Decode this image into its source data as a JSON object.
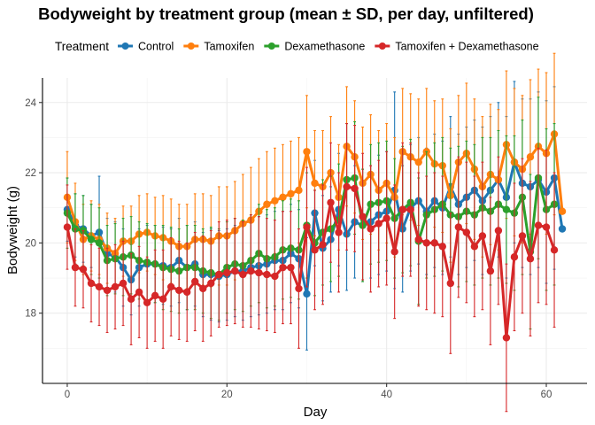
{
  "chart_data": {
    "type": "line",
    "title": "Bodyweight by treatment group (mean ± SD, per day, unfiltered)",
    "xlabel": "Day",
    "ylabel": "Bodyweight (g)",
    "xlim": [
      -3.1,
      65.1
    ],
    "ylim": [
      16.0,
      24.7
    ],
    "xticks": [
      0,
      20,
      40,
      60
    ],
    "yticks": [
      18,
      20,
      22,
      24
    ],
    "grid": true,
    "legend": {
      "title": "Treatment",
      "position": "top"
    },
    "series": [
      {
        "name": "Control",
        "color": "#1f77b4",
        "x": [
          0,
          1,
          2,
          3,
          4,
          5,
          6,
          7,
          8,
          9,
          10,
          11,
          12,
          13,
          14,
          15,
          16,
          17,
          18,
          19,
          20,
          21,
          22,
          23,
          24,
          25,
          26,
          27,
          28,
          29,
          30,
          31,
          32,
          33,
          34,
          35,
          36,
          37,
          38,
          39,
          40,
          41,
          42,
          43,
          44,
          45,
          46,
          47,
          48,
          49,
          50,
          51,
          52,
          53,
          54,
          55,
          56,
          57,
          58,
          59,
          60,
          61,
          62
        ],
        "y": [
          20.95,
          20.5,
          20.4,
          20.2,
          20.3,
          19.7,
          19.6,
          19.3,
          18.95,
          19.3,
          19.4,
          19.4,
          19.35,
          19.3,
          19.5,
          19.3,
          19.4,
          19.1,
          19.1,
          19.05,
          19.1,
          19.2,
          19.2,
          19.3,
          19.35,
          19.4,
          19.5,
          19.5,
          19.7,
          19.55,
          18.55,
          20.85,
          19.85,
          20.1,
          20.95,
          20.25,
          20.6,
          20.5,
          20.6,
          20.8,
          20.9,
          21.5,
          20.4,
          21.0,
          21.2,
          20.9,
          21.2,
          21.0,
          21.6,
          21.1,
          21.3,
          21.5,
          21.2,
          21.5,
          21.8,
          21.3,
          22.3,
          21.7,
          21.6,
          21.8,
          21.45,
          21.85,
          20.4
        ],
        "sd": [
          0.9,
          0.9,
          0.95,
          0.9,
          1.6,
          1.0,
          1.0,
          1.1,
          1.0,
          1.1,
          1.1,
          1.1,
          1.1,
          1.1,
          1.2,
          1.2,
          1.2,
          1.2,
          1.3,
          1.3,
          1.3,
          1.3,
          1.4,
          1.4,
          1.4,
          1.4,
          1.4,
          1.4,
          1.4,
          1.4,
          1.6,
          1.5,
          1.5,
          1.5,
          1.6,
          1.6,
          1.6,
          1.6,
          1.6,
          1.7,
          1.7,
          2.8,
          1.8,
          1.8,
          1.8,
          1.8,
          1.9,
          1.9,
          2.0,
          2.0,
          2.0,
          2.0,
          2.1,
          2.1,
          2.2,
          2.3,
          2.3,
          2.4,
          2.5,
          2.5,
          2.6,
          2.6,
          0.0
        ]
      },
      {
        "name": "Tamoxifen",
        "color": "#ff7f0e",
        "x": [
          0,
          1,
          2,
          3,
          4,
          5,
          6,
          7,
          8,
          9,
          10,
          11,
          12,
          13,
          14,
          15,
          16,
          17,
          18,
          19,
          20,
          21,
          22,
          23,
          24,
          25,
          26,
          27,
          28,
          29,
          30,
          31,
          32,
          33,
          34,
          35,
          36,
          37,
          38,
          39,
          40,
          41,
          42,
          43,
          44,
          45,
          46,
          47,
          48,
          49,
          50,
          51,
          52,
          53,
          54,
          55,
          56,
          57,
          58,
          59,
          60,
          61,
          62
        ],
        "y": [
          21.3,
          20.6,
          20.1,
          20.2,
          20.1,
          19.85,
          19.7,
          20.05,
          20.05,
          20.25,
          20.3,
          20.2,
          20.15,
          20.05,
          19.9,
          19.9,
          20.1,
          20.1,
          20.05,
          20.2,
          20.2,
          20.35,
          20.55,
          20.65,
          20.9,
          21.1,
          21.2,
          21.3,
          21.4,
          21.5,
          22.6,
          21.7,
          21.6,
          22.0,
          21.3,
          22.75,
          22.45,
          21.7,
          21.95,
          21.5,
          21.7,
          21.3,
          22.6,
          22.45,
          22.3,
          22.6,
          22.25,
          22.2,
          21.35,
          22.3,
          22.55,
          22.1,
          21.6,
          21.95,
          21.8,
          22.8,
          22.3,
          22.1,
          22.45,
          22.75,
          22.55,
          23.1,
          20.9
        ],
        "sd": [
          1.3,
          1.1,
          1.0,
          1.0,
          1.0,
          1.0,
          1.0,
          1.0,
          1.0,
          1.1,
          1.1,
          1.1,
          1.2,
          1.2,
          1.2,
          1.2,
          1.3,
          1.3,
          1.3,
          1.4,
          1.4,
          1.4,
          1.4,
          1.5,
          1.5,
          1.5,
          1.5,
          1.5,
          1.5,
          1.5,
          1.6,
          1.5,
          1.6,
          1.6,
          1.5,
          1.7,
          1.6,
          1.6,
          1.7,
          1.7,
          1.7,
          1.7,
          1.8,
          1.8,
          1.8,
          1.8,
          1.8,
          1.9,
          1.9,
          1.9,
          2.0,
          2.0,
          2.0,
          2.0,
          2.0,
          2.1,
          2.1,
          2.1,
          2.2,
          2.2,
          2.3,
          2.3,
          0.0
        ]
      },
      {
        "name": "Dexamethasone",
        "color": "#2ca02c",
        "x": [
          0,
          1,
          2,
          3,
          4,
          5,
          6,
          7,
          8,
          9,
          10,
          11,
          12,
          13,
          14,
          15,
          16,
          17,
          18,
          19,
          20,
          21,
          22,
          23,
          24,
          25,
          26,
          27,
          28,
          29,
          30,
          31,
          32,
          33,
          34,
          35,
          36,
          37,
          38,
          39,
          40,
          41,
          42,
          43,
          44,
          45,
          46,
          47,
          48,
          49,
          50,
          51,
          52,
          53,
          54,
          55,
          56,
          57,
          58,
          59,
          60,
          61
        ],
        "y": [
          20.85,
          20.4,
          20.35,
          20.1,
          20.0,
          19.5,
          19.55,
          19.6,
          19.65,
          19.5,
          19.45,
          19.4,
          19.3,
          19.25,
          19.2,
          19.3,
          19.3,
          19.2,
          19.15,
          19.1,
          19.3,
          19.4,
          19.35,
          19.5,
          19.7,
          19.55,
          19.6,
          19.8,
          19.85,
          19.8,
          20.5,
          20.0,
          20.3,
          20.4,
          20.65,
          21.8,
          21.85,
          20.5,
          21.1,
          21.15,
          21.2,
          20.7,
          20.95,
          21.15,
          20.05,
          20.8,
          20.95,
          21.1,
          20.8,
          20.75,
          20.9,
          20.8,
          21.0,
          20.9,
          21.1,
          20.95,
          20.85,
          21.3,
          19.75,
          21.85,
          20.95,
          21.1
        ],
        "sd": [
          1.0,
          1.0,
          1.0,
          1.0,
          1.0,
          1.0,
          1.0,
          1.1,
          1.1,
          1.1,
          1.1,
          1.1,
          1.2,
          1.2,
          1.2,
          1.2,
          1.2,
          1.2,
          1.3,
          1.3,
          1.3,
          1.3,
          1.3,
          1.3,
          1.4,
          1.4,
          1.4,
          1.4,
          1.4,
          1.4,
          1.5,
          1.5,
          1.5,
          1.5,
          1.6,
          1.6,
          1.6,
          1.6,
          1.7,
          1.7,
          1.7,
          1.7,
          1.8,
          1.8,
          1.8,
          1.8,
          1.9,
          1.9,
          1.9,
          2.0,
          2.0,
          2.0,
          2.0,
          2.1,
          2.1,
          2.1,
          2.2,
          2.2,
          2.2,
          2.3,
          2.3,
          2.3
        ]
      },
      {
        "name": "Tamoxifen + Dexamethasone",
        "color": "#d62728",
        "x": [
          0,
          1,
          2,
          3,
          4,
          5,
          6,
          7,
          8,
          9,
          10,
          11,
          12,
          13,
          14,
          15,
          16,
          17,
          18,
          19,
          20,
          21,
          22,
          23,
          24,
          25,
          26,
          27,
          28,
          29,
          30,
          31,
          32,
          33,
          34,
          35,
          36,
          37,
          38,
          39,
          40,
          41,
          42,
          43,
          44,
          45,
          46,
          47,
          48,
          49,
          50,
          51,
          52,
          53,
          54,
          55,
          56,
          57,
          58,
          59,
          60,
          61
        ],
        "y": [
          20.45,
          19.3,
          19.25,
          18.85,
          18.75,
          18.65,
          18.75,
          18.85,
          18.4,
          18.6,
          18.3,
          18.5,
          18.4,
          18.75,
          18.65,
          18.6,
          18.9,
          18.7,
          18.85,
          19.1,
          19.15,
          19.2,
          19.1,
          19.2,
          19.15,
          19.1,
          19.05,
          19.3,
          19.3,
          18.7,
          20.45,
          19.8,
          19.95,
          21.15,
          20.3,
          21.6,
          21.55,
          20.75,
          20.4,
          20.55,
          20.7,
          19.75,
          20.95,
          20.95,
          20.1,
          20.0,
          20.0,
          19.9,
          18.85,
          20.45,
          20.3,
          19.9,
          20.2,
          19.2,
          20.35,
          17.3,
          19.6,
          20.2,
          19.55,
          20.5,
          20.45,
          19.8
        ],
        "sd": [
          1.2,
          1.1,
          1.1,
          1.1,
          1.1,
          1.2,
          1.2,
          1.2,
          1.3,
          1.3,
          1.3,
          1.3,
          1.4,
          1.4,
          1.4,
          1.4,
          1.4,
          1.5,
          1.5,
          1.5,
          1.5,
          1.5,
          1.5,
          1.6,
          1.6,
          1.6,
          1.6,
          1.6,
          1.6,
          1.7,
          1.7,
          1.7,
          1.7,
          1.7,
          1.7,
          1.8,
          1.8,
          1.8,
          1.8,
          1.8,
          1.9,
          1.9,
          1.9,
          1.9,
          1.9,
          1.9,
          2.0,
          2.0,
          2.0,
          2.0,
          2.0,
          2.0,
          2.1,
          2.1,
          2.1,
          2.1,
          2.1,
          2.2,
          2.2,
          2.2,
          2.2,
          2.2
        ]
      }
    ]
  }
}
